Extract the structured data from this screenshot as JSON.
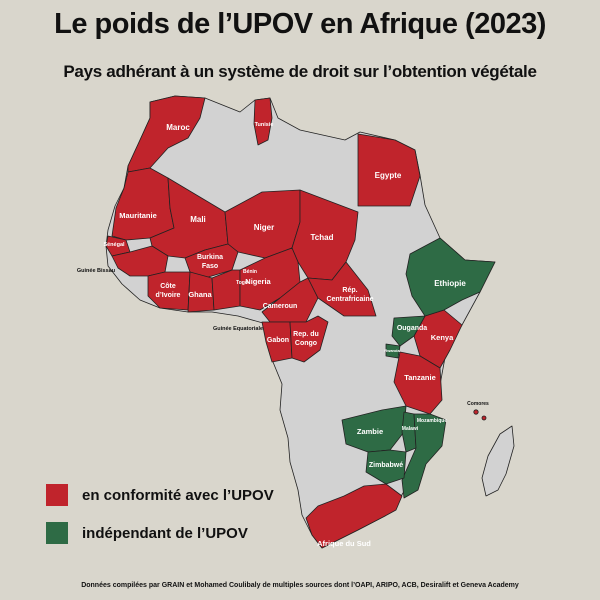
{
  "title": "Le poids de l’UPOV en Afrique (2023)",
  "subtitle": "Pays adhérant à un système de droit sur l’obtention végétale",
  "legend": [
    {
      "label": "en conformité avec l’UPOV",
      "color": "#c0242c"
    },
    {
      "label": "indépendant de l’UPOV",
      "color": "#2e6b45"
    }
  ],
  "colors": {
    "conform": "#c0242c",
    "independent": "#2e6b45",
    "other": "#d2d2d2",
    "background": "#d9d6cc",
    "border": "#222222"
  },
  "countries": {
    "maroc": "Maroc",
    "tunisie": "Tunisie",
    "egypte": "Egypte",
    "mauritanie": "Mauritanie",
    "mali": "Mali",
    "niger": "Niger",
    "tchad": "Tchad",
    "senegal": "Sénégal",
    "guinee_bissau": "Guinée Bissau",
    "burkina": "Burkina\nFaso",
    "benin": "Bénin",
    "togo": "Togo",
    "cote_ivoire": "Côte\nd’Ivoire",
    "ghana": "Ghana",
    "nigeria": "Nigeria",
    "rca": "Rép.\nCentrafricaine",
    "cameroun": "Cameroun",
    "guinee_eq": "Guinée Equatoriale",
    "gabon": "Gabon",
    "congo": "Rep. du\nCongo",
    "ethiopie": "Ethiopie",
    "ouganda": "Ouganda",
    "kenya": "Kenya",
    "rwanda": "Rwanda",
    "tanzanie": "Tanzanie",
    "comores": "Comores",
    "zambie": "Zambie",
    "malawi": "Malawi",
    "mozambique": "Mozambique",
    "zimbabwe": "Zimbabwé",
    "afrique_du_sud": "Afrique du Sud"
  },
  "source": "Données compilées par GRAIN et Mohamed Coulibaly de multiples sources dont l’OAPI, ARIPO, ACB, Desiralift et Geneva Academy"
}
